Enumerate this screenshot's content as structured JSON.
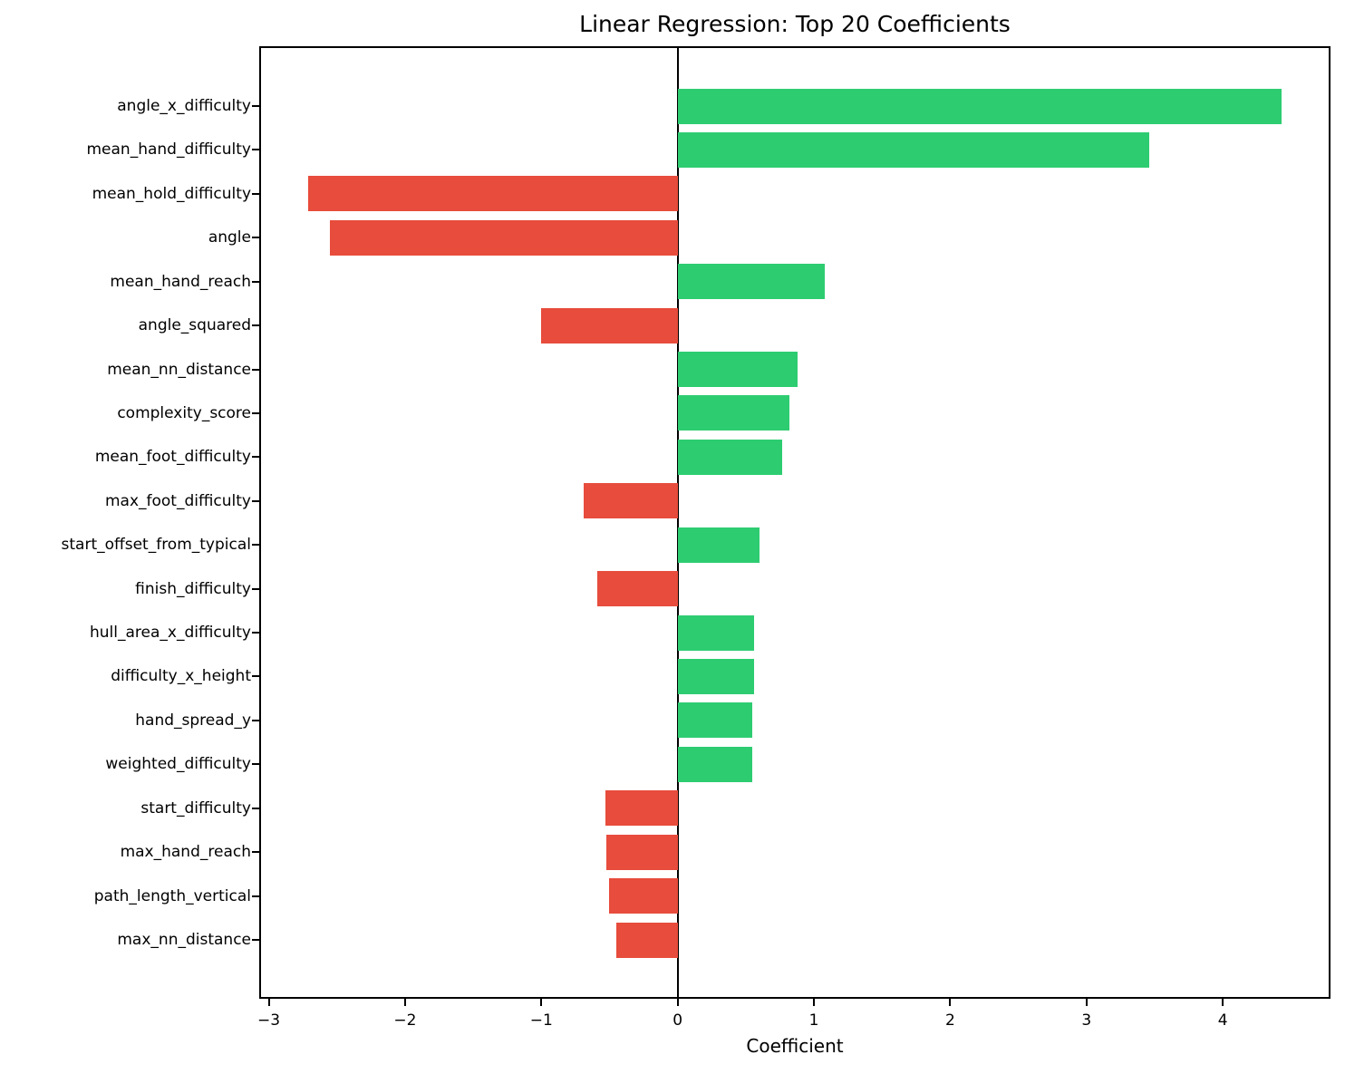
{
  "chart_data": {
    "type": "bar",
    "orientation": "horizontal",
    "title": "Linear Regression: Top 20 Coefficients",
    "xlabel": "Coefficient",
    "ylabel": "",
    "categories": [
      "angle_x_difficulty",
      "mean_hand_difficulty",
      "mean_hold_difficulty",
      "angle",
      "mean_hand_reach",
      "angle_squared",
      "mean_nn_distance",
      "complexity_score",
      "mean_foot_difficulty",
      "max_foot_difficulty",
      "start_offset_from_typical",
      "finish_difficulty",
      "hull_area_x_difficulty",
      "difficulty_x_height",
      "hand_spread_y",
      "weighted_difficulty",
      "start_difficulty",
      "max_hand_reach",
      "path_length_vertical",
      "max_nn_distance"
    ],
    "values": [
      4.43,
      3.46,
      -2.71,
      -2.55,
      1.08,
      -1.0,
      0.88,
      0.82,
      0.77,
      -0.69,
      0.6,
      -0.59,
      0.56,
      0.56,
      0.55,
      0.55,
      -0.53,
      -0.52,
      -0.5,
      -0.45
    ],
    "colors": {
      "positive": "#2ecc71",
      "negative": "#e74c3c"
    },
    "xlim": [
      -3.07,
      4.79
    ],
    "xticks": [
      -3,
      -2,
      -1,
      0,
      1,
      2,
      3,
      4
    ],
    "zero_line": true,
    "grid": false,
    "legend": null
  }
}
